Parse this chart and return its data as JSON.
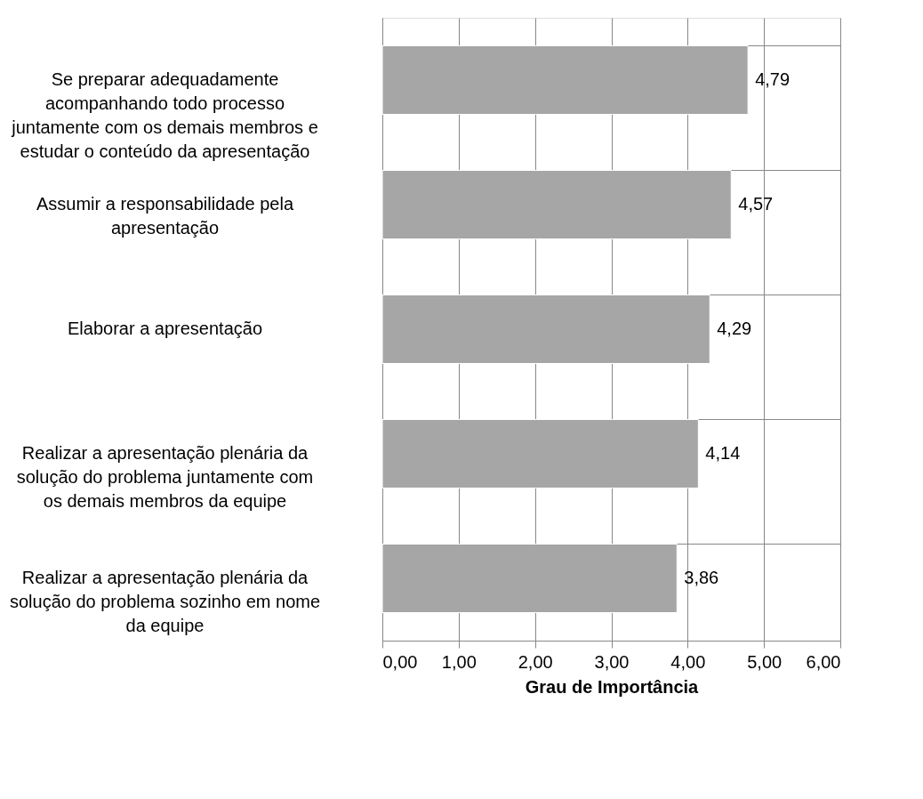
{
  "chart_data": {
    "type": "bar",
    "orientation": "horizontal",
    "xlabel": "Grau de Importância",
    "categories": [
      "Se preparar adequadamente\nacompanhando todo processo\njuntamente com os demais membros e\nestudar o conteúdo da apresentação",
      "Assumir a responsabilidade pela\napresentação",
      "Elaborar a apresentação",
      "Realizar a apresentação plenária da\nsolução do problema juntamente com\nos demais membros da equipe",
      "Realizar a apresentação plenária da\nsolução do problema sozinho em nome\nda equipe"
    ],
    "values": [
      4.79,
      4.57,
      4.29,
      4.14,
      3.86
    ],
    "value_labels": [
      "4,79",
      "4,57",
      "4,29",
      "4,14",
      "3,86"
    ],
    "color": "#a6a6a6",
    "xlim": [
      0,
      6
    ],
    "xticks": [
      {
        "value": 0,
        "label": "0,00"
      },
      {
        "value": 1,
        "label": "1,00"
      },
      {
        "value": 2,
        "label": "2,00"
      },
      {
        "value": 3,
        "label": "3,00"
      },
      {
        "value": 4,
        "label": "4,00"
      },
      {
        "value": 5,
        "label": "5,00"
      },
      {
        "value": 6,
        "label": "6,00"
      }
    ],
    "grid": true
  }
}
